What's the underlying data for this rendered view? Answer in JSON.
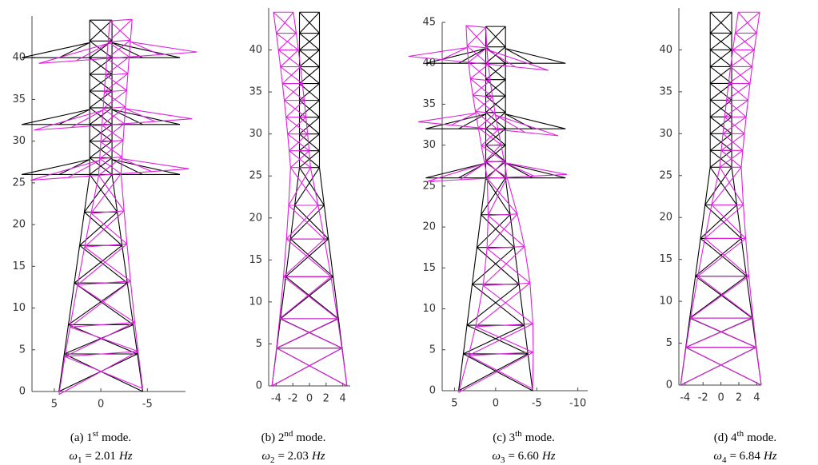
{
  "figure": {
    "panels": [
      {
        "xlim": [
          7.4,
          -9.1
        ],
        "ylim": [
          0,
          45
        ],
        "xticks": [
          5,
          0,
          -5
        ],
        "yticks": [
          0,
          5,
          10,
          15,
          20,
          25,
          30,
          35,
          40
        ],
        "caption": {
          "label": "(a) 1",
          "sup": "st",
          "mode": "mode.",
          "omega": "ω",
          "sub": "1",
          "value": "= 2.01",
          "unit": "Hz"
        }
      },
      {
        "xlim": [
          -4.9,
          4.9
        ],
        "ylim": [
          0,
          45
        ],
        "xticks": [
          -4,
          -2,
          0,
          2,
          4
        ],
        "yticks": [
          0,
          5,
          10,
          15,
          20,
          25,
          30,
          35,
          40
        ],
        "caption": {
          "label": "(b) 2",
          "sup": "nd",
          "mode": "mode.",
          "omega": "ω",
          "sub": "2",
          "value": "= 2.03",
          "unit": "Hz"
        }
      },
      {
        "xlim": [
          6.5,
          -11.2
        ],
        "ylim": [
          0,
          45
        ],
        "xticks": [
          5,
          0,
          -5,
          -10
        ],
        "yticks": [
          0,
          5,
          10,
          15,
          20,
          25,
          30,
          35,
          40,
          45
        ],
        "caption": {
          "label": "(c) 3",
          "sup": "th",
          "mode": "mode.",
          "omega": "ω",
          "sub": "3",
          "value": "= 6.60",
          "unit": "Hz"
        }
      },
      {
        "xlim": [
          -4.7,
          4.5
        ],
        "ylim": [
          0,
          45
        ],
        "xticks": [
          -4,
          -2,
          0,
          2,
          4
        ],
        "yticks": [
          0,
          5,
          10,
          15,
          20,
          25,
          30,
          35,
          40
        ],
        "caption": {
          "label": "(d) 4",
          "sup": "th",
          "mode": "mode.",
          "omega": "ω",
          "sub": "4",
          "value": "= 6.84",
          "unit": "Hz"
        }
      }
    ]
  }
}
